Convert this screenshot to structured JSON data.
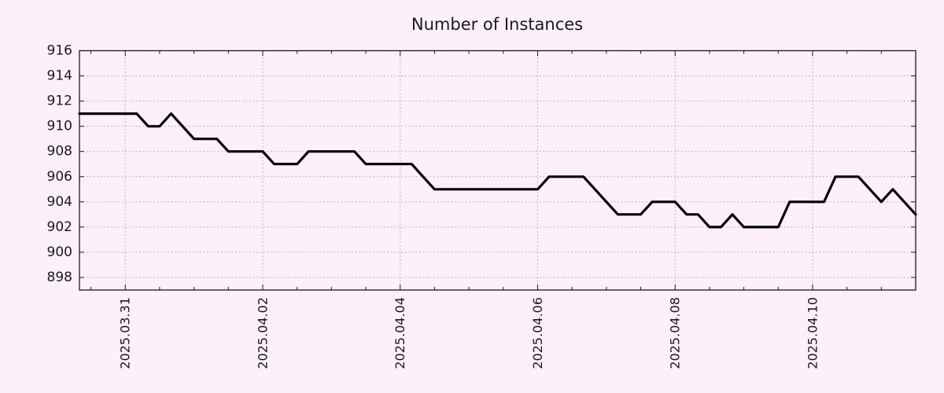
{
  "chart_data": {
    "type": "line",
    "title": "Number of Instances",
    "legend": "none",
    "x_start": "2025-03-30 08:00",
    "x_step_hours": 4,
    "values": [
      911,
      911,
      911,
      911,
      911,
      911,
      910,
      910,
      911,
      910,
      909,
      909,
      909,
      908,
      908,
      908,
      908,
      907,
      907,
      907,
      908,
      908,
      908,
      908,
      908,
      907,
      907,
      907,
      907,
      907,
      906,
      905,
      905,
      905,
      905,
      905,
      905,
      905,
      905,
      905,
      905,
      906,
      906,
      906,
      906,
      905,
      904,
      903,
      903,
      903,
      904,
      904,
      904,
      903,
      903,
      902,
      902,
      903,
      902,
      902,
      902,
      902,
      904,
      904,
      904,
      904,
      906,
      906,
      906,
      905,
      904,
      905,
      904,
      903
    ],
    "x_tick_labels": [
      "2025.03.31",
      "2025.04.02",
      "2025.04.04",
      "2025.04.06",
      "2025.04.08",
      "2025.04.10"
    ],
    "x_tick_indices": [
      4,
      16,
      28,
      40,
      52,
      64
    ],
    "x_minor_tick_start": 1,
    "x_minor_tick_every": 3,
    "y_ticks": [
      898,
      900,
      902,
      904,
      906,
      908,
      910,
      912,
      914,
      916
    ],
    "y_range": [
      897,
      916
    ],
    "grid": "dotted",
    "colors": {
      "background": "#fdf0fa",
      "line": "#000000",
      "grid": "#a9a1a9",
      "border": "#1a1a1a",
      "text": "#1a1a1a"
    }
  }
}
